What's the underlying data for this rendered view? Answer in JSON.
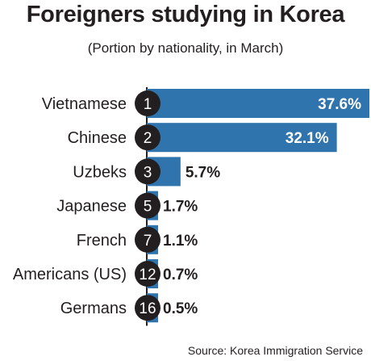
{
  "title": "Foreigners studying in Korea",
  "subtitle": "(Portion by nationality, in March)",
  "source": "Source: Korea Immigration Service",
  "colors": {
    "bar": "#2f74ad",
    "rank_circle": "#231f20",
    "text": "#231f20"
  },
  "chart_data": {
    "type": "bar",
    "orientation": "horizontal",
    "categories": [
      "Vietnamese",
      "Chinese",
      "Uzbeks",
      "Japanese",
      "French",
      "Americans (US)",
      "Germans"
    ],
    "ranks": [
      "1",
      "2",
      "3",
      "5",
      "7",
      "12",
      "16"
    ],
    "values": [
      37.6,
      32.1,
      5.7,
      1.7,
      1.1,
      0.7,
      0.5
    ],
    "value_labels": [
      "37.6%",
      "32.1%",
      "5.7%",
      "1.7%",
      "1.1%",
      "0.7%",
      "0.5%"
    ],
    "unit": "%",
    "title": "Foreigners studying in Korea",
    "subtitle": "(Portion by nationality, in March)",
    "grid": false,
    "legend": "none"
  }
}
